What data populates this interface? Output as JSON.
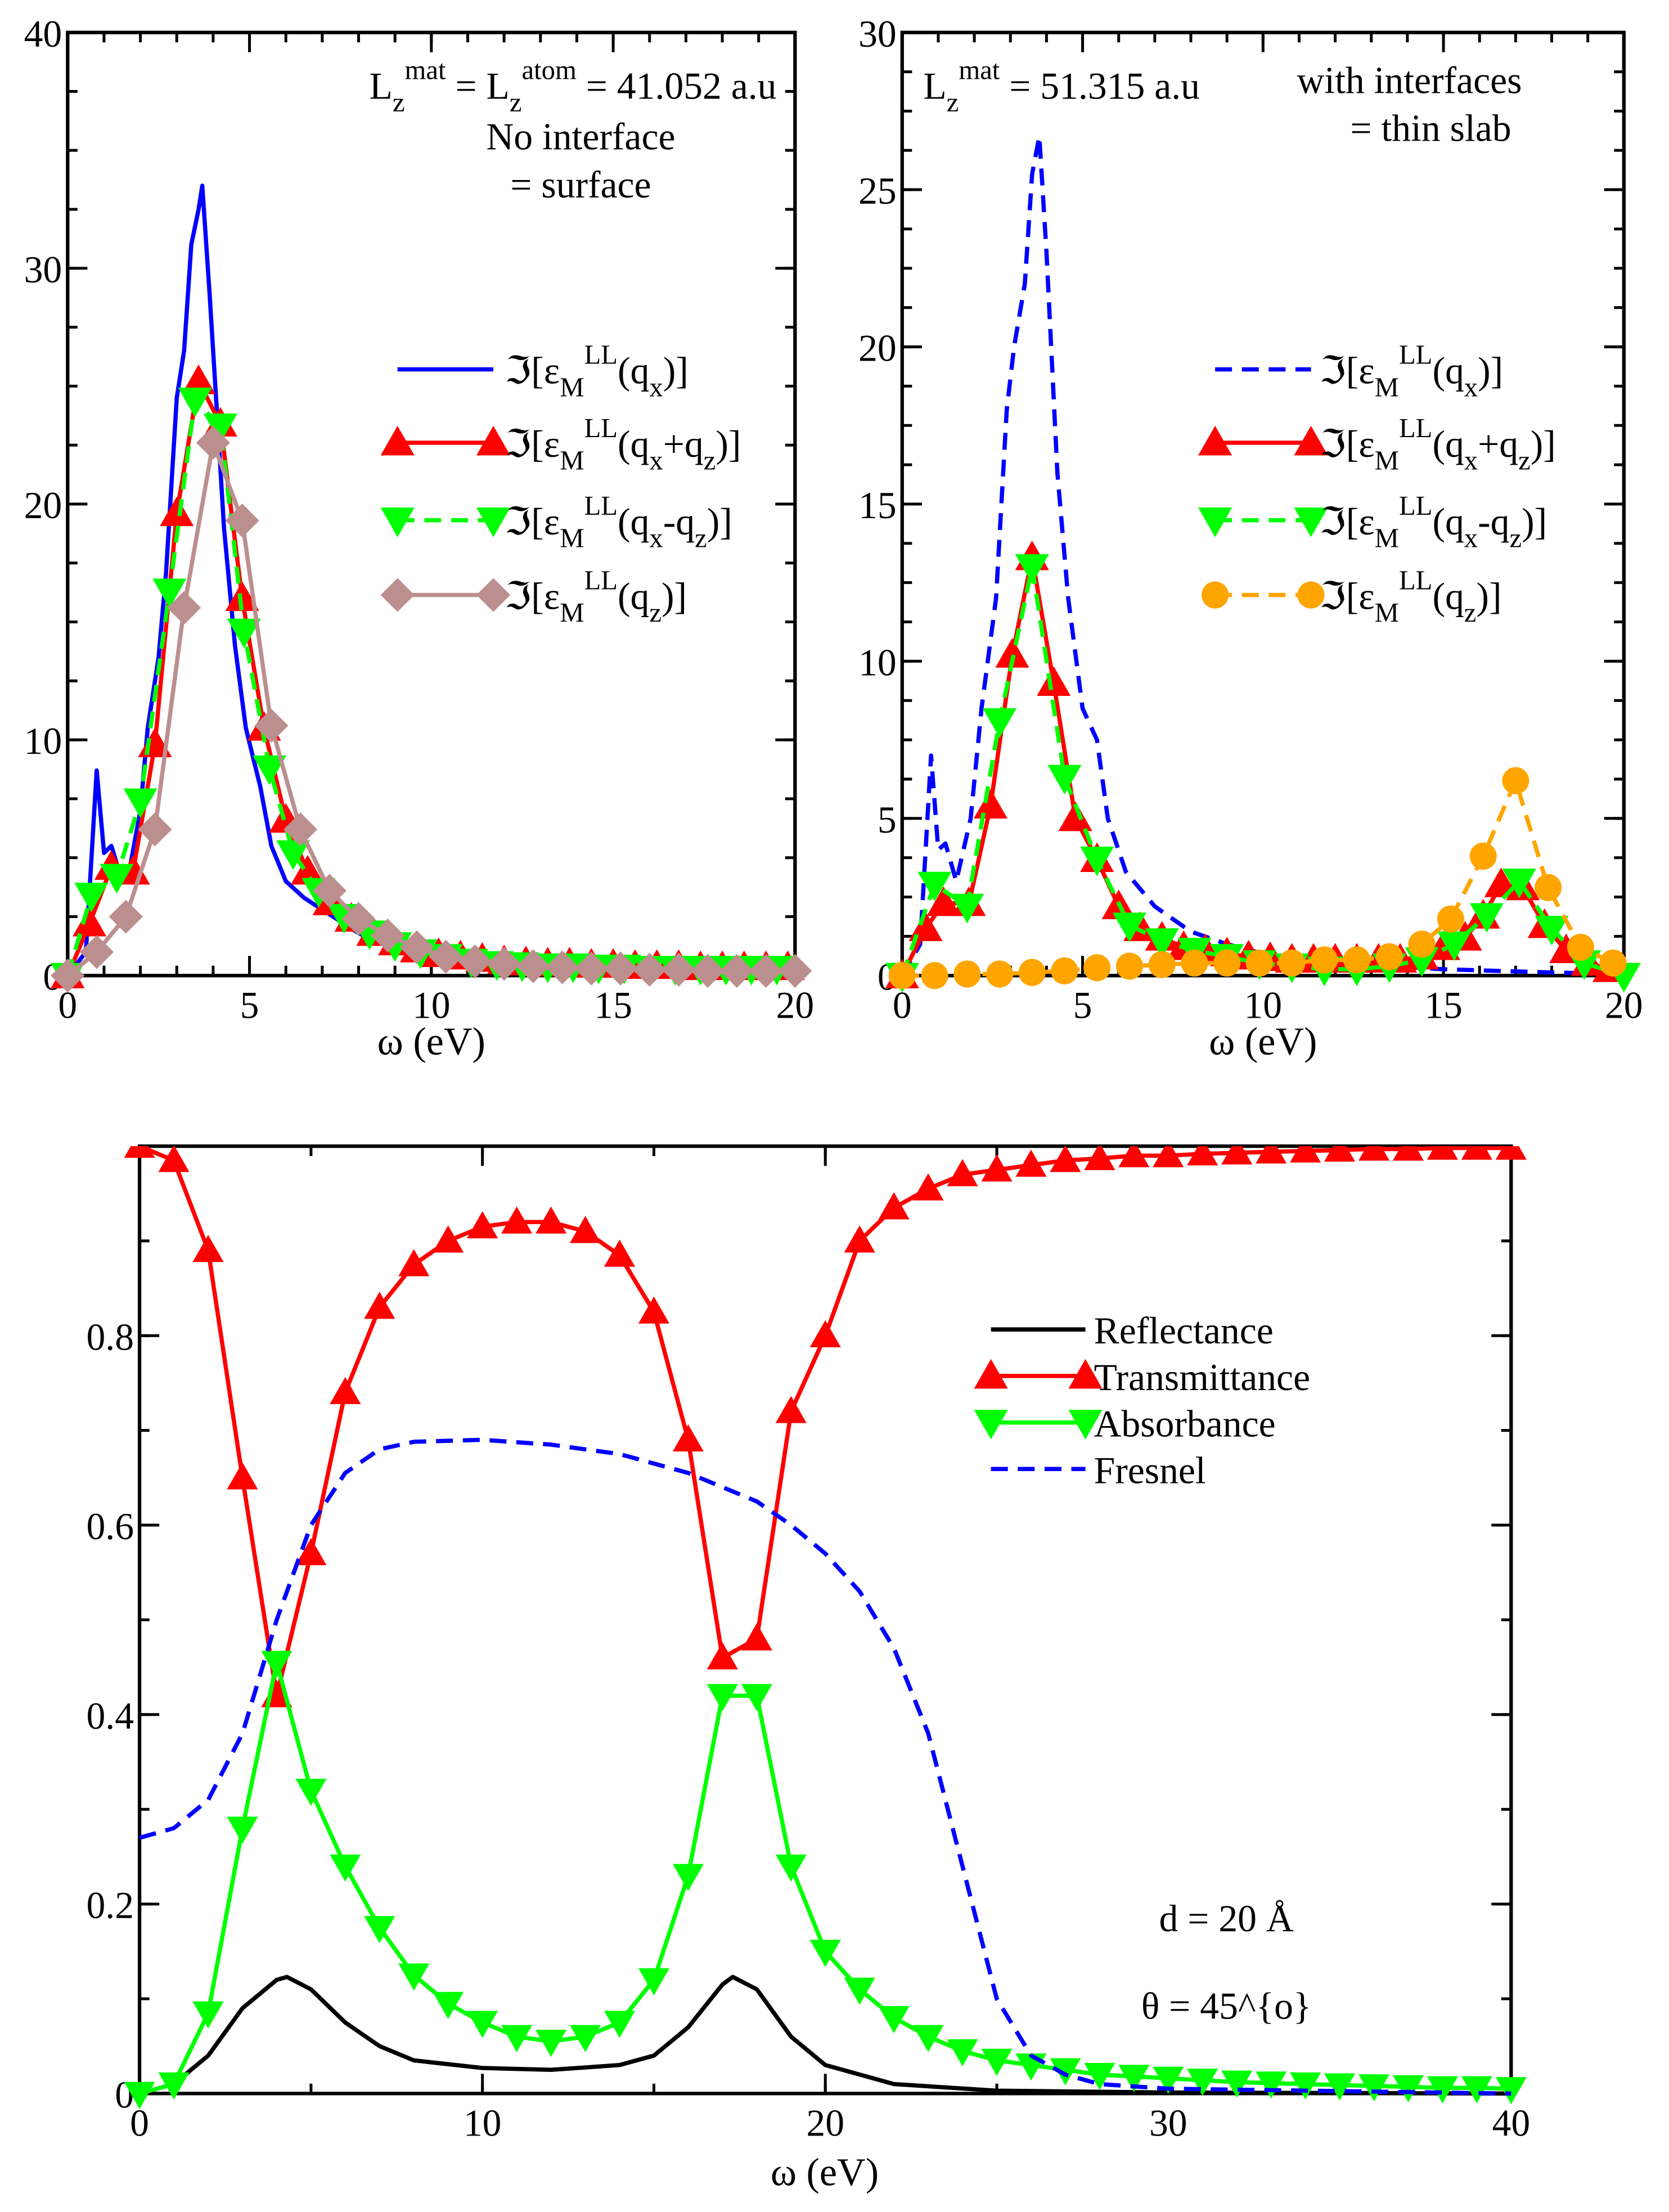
{
  "chart_data": [
    {
      "type": "line",
      "xlabel": "ω (eV)",
      "ylabel": "",
      "xlim": [
        0,
        20
      ],
      "ylim": [
        0,
        40
      ],
      "xticks": [
        0,
        5,
        10,
        15,
        20
      ],
      "yticks": [
        0,
        10,
        20,
        30,
        40
      ],
      "grid": false,
      "legend_placement": "right",
      "annotations": [
        "L_{z}^{mat} = L_{z}^{atom} = 41.052 a.u",
        "No interface",
        "= surface"
      ],
      "series": [
        {
          "name": "ℑ[ε_{M}^{LL}(q_{x})]",
          "color": "#0000ff",
          "style": "solid",
          "marker": "none",
          "x": [
            0,
            0.5,
            0.8,
            1.0,
            1.2,
            1.4,
            1.7,
            2.0,
            2.2,
            2.5,
            2.7,
            3.0,
            3.2,
            3.4,
            3.6,
            3.7,
            3.9,
            4.1,
            4.3,
            4.6,
            4.9,
            5.3,
            5.6,
            6.0,
            6.5,
            7.0,
            8.0,
            9.0,
            10.0,
            12.0,
            15.0,
            20.0
          ],
          "y": [
            0,
            1,
            8.7,
            5.2,
            5.5,
            4.5,
            4.5,
            7,
            10.5,
            13.5,
            17,
            24.5,
            26.5,
            31,
            32.5,
            33.5,
            29,
            24,
            19,
            14,
            10.5,
            8,
            5.5,
            4,
            3.3,
            2.8,
            1.8,
            1.1,
            0.7,
            0.4,
            0.2,
            0.1
          ]
        },
        {
          "name": "ℑ[ε_{M}^{LL}(q_{x}+q_{z})]",
          "color": "#ff0000",
          "style": "solid",
          "marker": "triangle-up",
          "x": [
            0,
            0.6,
            1.2,
            1.8,
            2.4,
            3.0,
            3.6,
            4.2,
            4.8,
            5.4,
            6.0,
            6.6,
            7.2,
            7.8,
            8.4,
            9.0,
            9.6,
            10.2,
            10.8,
            11.4,
            12.0,
            12.6,
            13.2,
            13.8,
            14.4,
            15.0,
            15.6,
            16.2,
            16.8,
            17.4,
            18.0,
            18.6,
            19.2,
            19.8
          ],
          "y": [
            0,
            2.2,
            4.6,
            4.4,
            9.8,
            19.6,
            25.2,
            23.4,
            16,
            10.5,
            6.6,
            4.4,
            3.1,
            2.4,
            1.8,
            1.4,
            1.1,
            0.9,
            0.8,
            0.7,
            0.6,
            0.55,
            0.5,
            0.5,
            0.45,
            0.45,
            0.4,
            0.4,
            0.4,
            0.35,
            0.35,
            0.35,
            0.35,
            0.35
          ]
        },
        {
          "name": "ℑ[ε_{M}^{LL}(q_{x}-q_{z})]",
          "color": "#00ff00",
          "style": "dashed",
          "marker": "triangle-down",
          "x": [
            0,
            0.65,
            1.35,
            2.0,
            2.8,
            3.5,
            4.2,
            4.85,
            5.55,
            6.2,
            6.9,
            7.6,
            8.3,
            9.0,
            9.7,
            10.4,
            11.1,
            11.8,
            12.5,
            13.2,
            13.9,
            14.6,
            15.3,
            16.0,
            16.7,
            17.4,
            18.1,
            18.8,
            19.5
          ],
          "y": [
            0,
            3.4,
            4.2,
            7.4,
            16.3,
            24.4,
            23.3,
            14.6,
            8.8,
            5.2,
            3.6,
            2.5,
            1.8,
            1.3,
            1.0,
            0.8,
            0.6,
            0.5,
            0.45,
            0.4,
            0.4,
            0.35,
            0.35,
            0.3,
            0.3,
            0.3,
            0.3,
            0.3,
            0.3
          ]
        },
        {
          "name": "ℑ[ε_{M}^{LL}(q_{z})]",
          "color": "#bc8f8f",
          "style": "solid",
          "marker": "diamond",
          "x": [
            0,
            0.8,
            1.6,
            2.4,
            3.2,
            4.0,
            4.8,
            5.6,
            6.4,
            7.2,
            8.0,
            8.8,
            9.6,
            10.4,
            11.2,
            12.0,
            12.8,
            13.6,
            14.4,
            15.2,
            16.0,
            16.8,
            17.6,
            18.4,
            19.2,
            20.0
          ],
          "y": [
            0,
            1,
            2.5,
            6.2,
            15.6,
            22.6,
            19.3,
            10.6,
            6.2,
            3.6,
            2.4,
            1.7,
            1.2,
            0.8,
            0.6,
            0.5,
            0.4,
            0.35,
            0.3,
            0.3,
            0.25,
            0.25,
            0.2,
            0.2,
            0.2,
            0.2
          ]
        }
      ]
    },
    {
      "type": "line",
      "xlabel": "ω (eV)",
      "ylabel": "",
      "xlim": [
        0,
        20
      ],
      "ylim": [
        0,
        30
      ],
      "xticks": [
        0,
        5,
        10,
        15,
        20
      ],
      "yticks": [
        0,
        5,
        10,
        15,
        20,
        25,
        30
      ],
      "grid": false,
      "legend_placement": "right",
      "annotations": [
        "L_{z}^{mat} = 51.315 a.u",
        "with interfaces",
        "= thin slab"
      ],
      "series": [
        {
          "name": "ℑ[ε_{M}^{LL}(q_{x})]",
          "color": "#0000ff",
          "style": "dashed",
          "marker": "none",
          "x": [
            0,
            0.5,
            0.8,
            1.0,
            1.2,
            1.5,
            1.9,
            2.2,
            2.6,
            2.9,
            3.1,
            3.4,
            3.6,
            3.8,
            4.0,
            4.3,
            4.6,
            5.0,
            5.4,
            5.7,
            6.2,
            7.0,
            8.0,
            9.0,
            10.0,
            12.0,
            15.0,
            18.0,
            20.0
          ],
          "y": [
            0,
            1,
            7,
            4,
            4.2,
            3,
            5,
            8.5,
            12,
            18,
            20,
            22,
            25.5,
            26.7,
            23,
            16,
            12,
            8.5,
            7.5,
            5,
            3.3,
            2.2,
            1.4,
            1,
            0.7,
            0.4,
            0.2,
            0.1,
            0.05
          ]
        },
        {
          "name": "ℑ[ε_{M}^{LL}(q_{x}+q_{z})]",
          "color": "#ff0000",
          "style": "solid",
          "marker": "triangle-up",
          "x": [
            0,
            0.65,
            1.15,
            1.85,
            2.45,
            3.05,
            3.6,
            4.2,
            4.8,
            5.4,
            6.0,
            6.6,
            7.2,
            7.8,
            8.4,
            9.0,
            9.6,
            10.2,
            10.8,
            11.4,
            12.0,
            12.6,
            13.2,
            13.8,
            14.4,
            15.0,
            15.6,
            16.1,
            16.6,
            17.2,
            17.8,
            18.4,
            19.0,
            19.6
          ],
          "y": [
            0,
            1.5,
            2.3,
            2.3,
            5.4,
            10.2,
            13.3,
            9.3,
            5.0,
            3.7,
            2.2,
            1.5,
            1.2,
            0.9,
            0.8,
            0.7,
            0.6,
            0.55,
            0.5,
            0.5,
            0.5,
            0.5,
            0.5,
            0.5,
            0.6,
            0.9,
            1.2,
            1.9,
            2.9,
            2.8,
            1.6,
            0.8,
            0.4,
            0.2
          ]
        },
        {
          "name": "ℑ[ε_{M}^{LL}(q_{x}-q_{z})]",
          "color": "#00ff00",
          "style": "dashed",
          "marker": "triangle-down",
          "x": [
            0,
            0.9,
            1.8,
            2.7,
            3.6,
            4.5,
            5.4,
            6.3,
            7.2,
            8.1,
            9.0,
            9.9,
            10.8,
            11.7,
            12.6,
            13.5,
            14.4,
            15.3,
            16.2,
            17.1,
            18.0,
            18.9,
            20.0
          ],
          "y": [
            0,
            2.9,
            2.2,
            8.1,
            13,
            6.3,
            3.7,
            1.6,
            1.1,
            0.8,
            0.6,
            0.4,
            0.3,
            0.2,
            0.2,
            0.3,
            0.5,
            1.0,
            1.9,
            3.0,
            1.5,
            0.4,
            0
          ]
        },
        {
          "name": "ℑ[ε_{M}^{LL}(q_{z})]",
          "color": "#ffa500",
          "style": "dashed",
          "marker": "circle",
          "x": [
            0,
            0.9,
            1.8,
            2.7,
            3.6,
            4.5,
            5.4,
            6.3,
            7.2,
            8.1,
            9.0,
            9.9,
            10.8,
            11.7,
            12.6,
            13.5,
            14.4,
            15.2,
            16.1,
            17.0,
            17.9,
            18.8,
            19.7
          ],
          "y": [
            0,
            0,
            0.05,
            0.05,
            0.1,
            0.15,
            0.25,
            0.3,
            0.35,
            0.4,
            0.4,
            0.4,
            0.4,
            0.5,
            0.5,
            0.6,
            1.0,
            1.8,
            3.8,
            6.2,
            2.8,
            0.9,
            0.4
          ]
        }
      ]
    },
    {
      "type": "line",
      "xlabel": "ω (eV)",
      "ylabel": "",
      "xlim": [
        0,
        40
      ],
      "ylim": [
        0,
        1
      ],
      "xticks": [
        0,
        10,
        20,
        30,
        40
      ],
      "yticks": [
        0,
        0.2,
        0.4,
        0.6,
        0.8
      ],
      "grid": false,
      "legend_placement": "right",
      "annotations": [
        "d = 20 Å",
        "θ = 45^{o}"
      ],
      "series": [
        {
          "name": "Reflectance",
          "color": "#000000",
          "style": "solid",
          "marker": "none",
          "x": [
            0,
            1,
            2,
            3,
            4,
            4.3,
            5,
            6,
            7,
            8,
            10,
            12,
            14,
            15,
            16,
            17,
            17.3,
            18,
            19,
            20,
            22,
            25,
            30,
            40
          ],
          "y": [
            0,
            0.01,
            0.04,
            0.09,
            0.12,
            0.123,
            0.11,
            0.075,
            0.05,
            0.035,
            0.027,
            0.025,
            0.03,
            0.04,
            0.07,
            0.115,
            0.123,
            0.11,
            0.06,
            0.03,
            0.01,
            0.003,
            0.001,
            0
          ]
        },
        {
          "name": "Transmittance",
          "color": "#ff0000",
          "style": "solid",
          "marker": "triangle-up",
          "x": [
            0,
            1,
            2,
            3,
            4,
            5,
            6,
            7,
            8,
            9,
            10,
            11,
            12,
            13,
            14,
            15,
            16,
            17,
            18,
            19,
            20,
            21,
            22,
            23,
            24,
            25,
            26,
            27,
            28,
            29,
            30,
            31,
            32,
            33,
            34,
            35,
            36,
            37,
            38,
            39,
            40
          ],
          "y": [
            1.0,
            0.985,
            0.89,
            0.65,
            0.42,
            0.57,
            0.74,
            0.83,
            0.875,
            0.9,
            0.915,
            0.92,
            0.92,
            0.91,
            0.885,
            0.825,
            0.69,
            0.46,
            0.48,
            0.72,
            0.8,
            0.9,
            0.935,
            0.955,
            0.97,
            0.975,
            0.98,
            0.985,
            0.987,
            0.99,
            0.99,
            0.992,
            0.993,
            0.994,
            0.995,
            0.996,
            0.997,
            0.997,
            0.998,
            0.998,
            0.998
          ]
        },
        {
          "name": "Absorbance",
          "color": "#00ff00",
          "style": "solid",
          "marker": "triangle-down",
          "x": [
            0,
            1,
            2,
            3,
            4,
            5,
            6,
            7,
            8,
            9,
            10,
            11,
            12,
            13,
            14,
            15,
            16,
            17,
            18,
            19,
            20,
            21,
            22,
            23,
            24,
            25,
            26,
            27,
            28,
            29,
            30,
            31,
            32,
            33,
            34,
            35,
            36,
            37,
            38,
            39,
            40
          ],
          "y": [
            0,
            0.01,
            0.085,
            0.28,
            0.455,
            0.32,
            0.24,
            0.175,
            0.125,
            0.095,
            0.075,
            0.06,
            0.055,
            0.06,
            0.075,
            0.12,
            0.23,
            0.42,
            0.42,
            0.24,
            0.15,
            0.11,
            0.08,
            0.06,
            0.045,
            0.035,
            0.03,
            0.025,
            0.02,
            0.018,
            0.016,
            0.014,
            0.012,
            0.011,
            0.01,
            0.009,
            0.008,
            0.007,
            0.006,
            0.006,
            0.005
          ]
        },
        {
          "name": "Fresnel",
          "color": "#0000ff",
          "style": "dashed",
          "marker": "none",
          "x": [
            0,
            1,
            2,
            3,
            4,
            5,
            6,
            7,
            8,
            10,
            12,
            14,
            16,
            18,
            19,
            20,
            21,
            22,
            23,
            24,
            25,
            26,
            27,
            28,
            30,
            40
          ],
          "y": [
            0.27,
            0.28,
            0.31,
            0.38,
            0.5,
            0.6,
            0.655,
            0.68,
            0.688,
            0.69,
            0.685,
            0.675,
            0.655,
            0.625,
            0.6,
            0.57,
            0.53,
            0.47,
            0.38,
            0.24,
            0.1,
            0.04,
            0.02,
            0.01,
            0.005,
            0
          ]
        }
      ]
    }
  ]
}
